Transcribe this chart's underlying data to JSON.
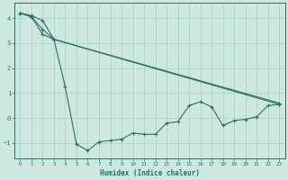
{
  "xlabel": "Humidex (Indice chaleur)",
  "ylabel": "",
  "background_color": "#cde8e0",
  "grid_color": "#aacfc5",
  "line_color": "#2e6e60",
  "xlim": [
    -0.5,
    23.5
  ],
  "ylim": [
    -1.6,
    4.6
  ],
  "yticks": [
    -1,
    0,
    1,
    2,
    3,
    4
  ],
  "xticks": [
    0,
    1,
    2,
    3,
    4,
    5,
    6,
    7,
    8,
    9,
    10,
    11,
    12,
    13,
    14,
    15,
    16,
    17,
    18,
    19,
    20,
    21,
    22,
    23
  ],
  "curve1_x": [
    0,
    1,
    2,
    3,
    4,
    5,
    6,
    7,
    8,
    9,
    10,
    11,
    12,
    13,
    14,
    15,
    16,
    17,
    18,
    19,
    20,
    21,
    22,
    23
  ],
  "curve1_y": [
    4.2,
    4.1,
    3.9,
    3.15,
    1.25,
    -1.05,
    -1.3,
    -0.95,
    -0.9,
    -0.85,
    -0.6,
    -0.65,
    -0.65,
    -0.2,
    -0.15,
    0.5,
    0.65,
    0.45,
    -0.3,
    -0.1,
    -0.05,
    0.05,
    0.5,
    0.55
  ],
  "curve2_x": [
    0,
    1,
    2,
    3,
    23
  ],
  "curve2_y": [
    4.2,
    4.05,
    3.55,
    3.15,
    0.55
  ],
  "curve3_x": [
    0,
    1,
    2,
    3,
    23
  ],
  "curve3_y": [
    4.2,
    4.05,
    3.35,
    3.15,
    0.6
  ]
}
